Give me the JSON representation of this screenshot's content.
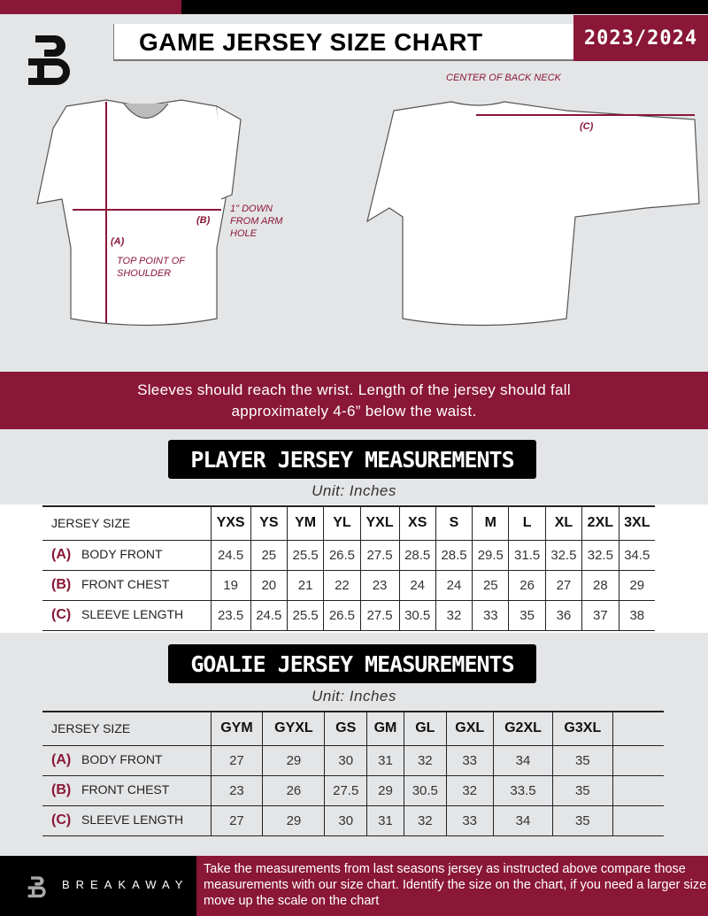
{
  "header": {
    "title": "GAME JERSEY SIZE CHART",
    "season": "2023/2024"
  },
  "diagram": {
    "center_back_neck": "CENTER OF BACK NECK",
    "label_a": "(A)",
    "label_b": "(B)",
    "label_c": "(C)",
    "arm_hole": "1\" DOWN FROM ARM HOLE",
    "top_shoulder": "TOP POINT OF SHOULDER"
  },
  "band": {
    "line1": "Sleeves should reach the wrist. Length of the jersey should fall",
    "line2": "approximately 4-6” below the waist."
  },
  "player": {
    "heading": "PLAYER JERSEY MEASUREMENTS",
    "unit": "Unit: Inches",
    "header_label": "JERSEY SIZE",
    "sizes": [
      "YXS",
      "YS",
      "YM",
      "YL",
      "YXL",
      "XS",
      "S",
      "M",
      "L",
      "XL",
      "2XL",
      "3XL"
    ],
    "rows": [
      {
        "letter": "(A)",
        "label": "BODY FRONT",
        "values": [
          "24.5",
          "25",
          "25.5",
          "26.5",
          "27.5",
          "28.5",
          "28.5",
          "29.5",
          "31.5",
          "32.5",
          "32.5",
          "34.5"
        ]
      },
      {
        "letter": "(B)",
        "label": "FRONT CHEST",
        "values": [
          "19",
          "20",
          "21",
          "22",
          "23",
          "24",
          "24",
          "25",
          "26",
          "27",
          "28",
          "29"
        ]
      },
      {
        "letter": "(C)",
        "label": "SLEEVE LENGTH",
        "values": [
          "23.5",
          "24.5",
          "25.5",
          "26.5",
          "27.5",
          "30.5",
          "32",
          "33",
          "35",
          "36",
          "37",
          "38"
        ]
      }
    ]
  },
  "goalie": {
    "heading": "GOALIE JERSEY MEASUREMENTS",
    "unit": "Unit: Inches",
    "header_label": "JERSEY SIZE",
    "sizes": [
      "GYM",
      "GYXL",
      "GS",
      "GM",
      "GL",
      "GXL",
      "G2XL",
      "G3XL",
      ""
    ],
    "rows": [
      {
        "letter": "(A)",
        "label": "BODY FRONT",
        "values": [
          "27",
          "29",
          "30",
          "31",
          "32",
          "33",
          "34",
          "35",
          ""
        ]
      },
      {
        "letter": "(B)",
        "label": "FRONT CHEST",
        "values": [
          "23",
          "26",
          "27.5",
          "29",
          "30.5",
          "32",
          "33.5",
          "35",
          ""
        ]
      },
      {
        "letter": "(C)",
        "label": "SLEEVE LENGTH",
        "values": [
          "27",
          "29",
          "30",
          "31",
          "32",
          "33",
          "34",
          "35",
          ""
        ]
      }
    ]
  },
  "footer": {
    "brand": "BREAKAWAY",
    "note": "Take the measurements from last seasons jersey as instructed above compare those measurements  with our size chart. Identify the size on the chart, if you need a larger size move up the scale on the chart"
  },
  "colors": {
    "accent": "#8a1737",
    "dark": "#000000",
    "background": "#e4e5e7"
  }
}
